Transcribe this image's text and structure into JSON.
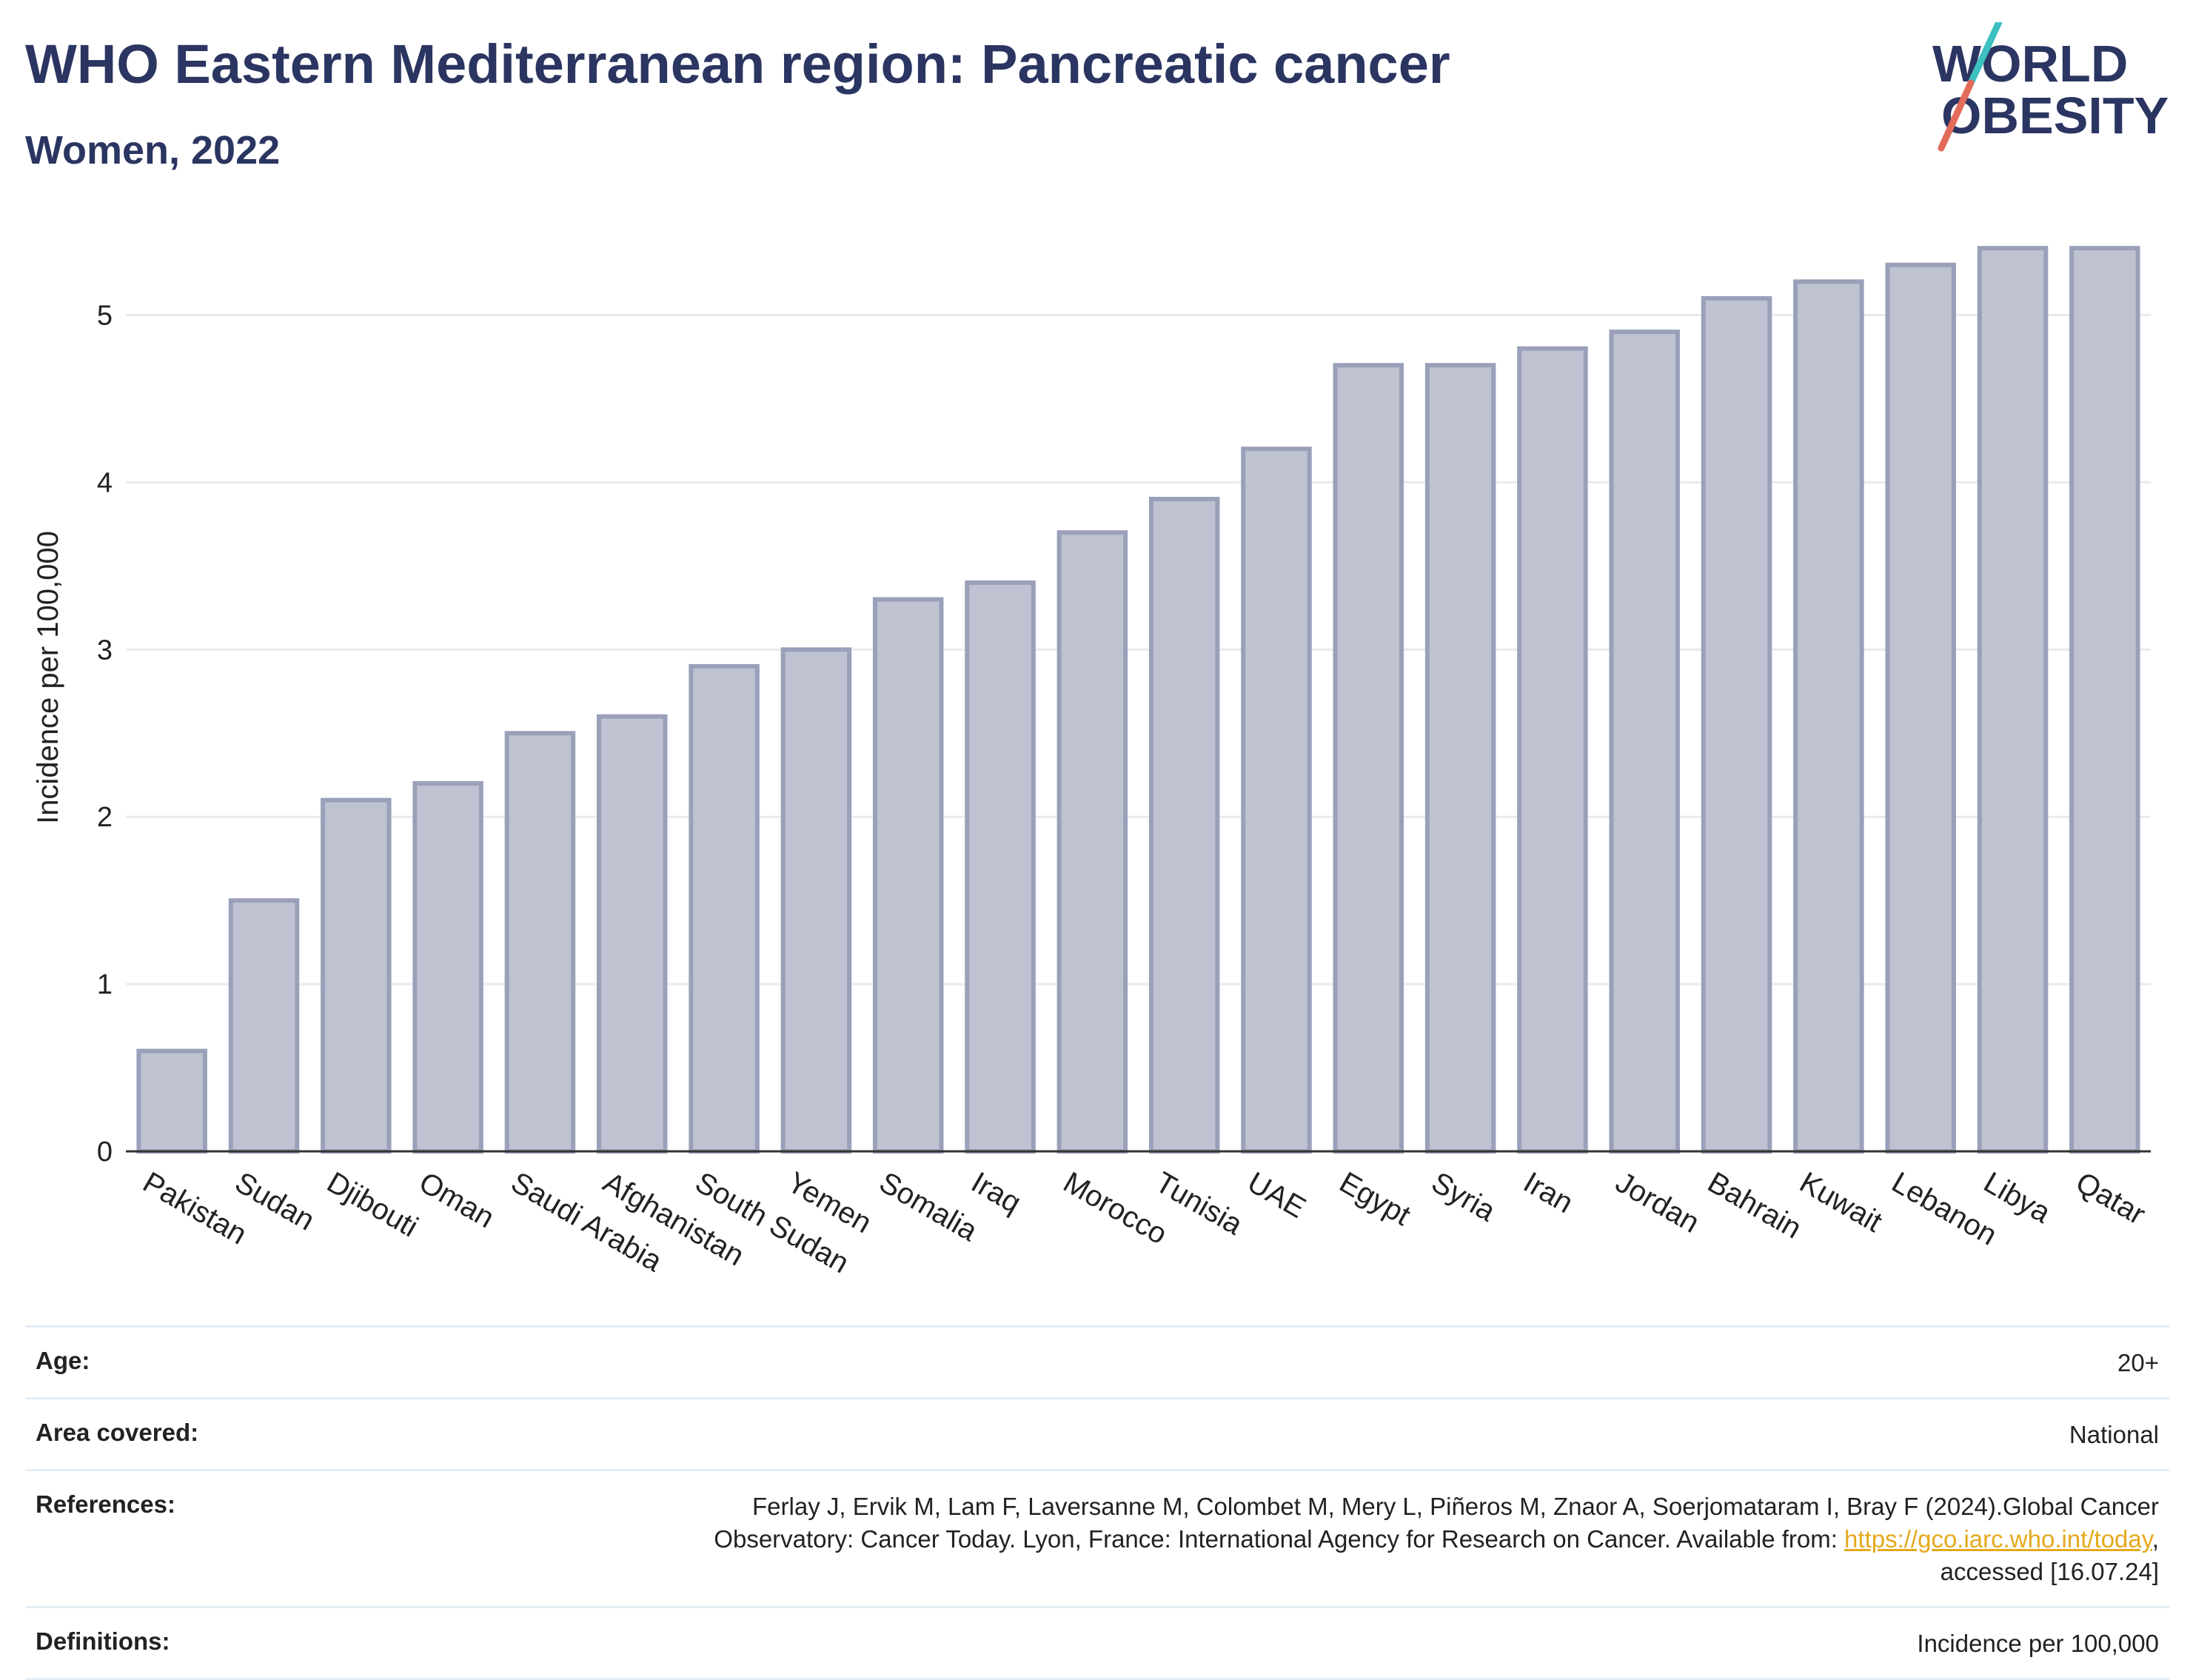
{
  "header": {
    "title": "WHO Eastern Mediterranean region: Pancreatic cancer",
    "subtitle": "Women, 2022"
  },
  "logo": {
    "line1": "WORLD",
    "line2": "OBESITY",
    "colors": {
      "text": "#2b3561",
      "slash_teal": "#3cc0c0",
      "slash_coral": "#e36b5a"
    }
  },
  "chart_data": {
    "type": "bar",
    "ylabel": "Incidence per 100,000",
    "xlabel": "",
    "ylim": [
      0,
      5.6
    ],
    "yticks": [
      0,
      1,
      2,
      3,
      4,
      5
    ],
    "grid": true,
    "bar_fill": "#bfc2d0",
    "bar_stroke": "#9aa0b9",
    "categories": [
      "Pakistan",
      "Sudan",
      "Djibouti",
      "Oman",
      "Saudi Arabia",
      "Afghanistan",
      "South Sudan",
      "Yemen",
      "Somalia",
      "Iraq",
      "Morocco",
      "Tunisia",
      "UAE",
      "Egypt",
      "Syria",
      "Iran",
      "Jordan",
      "Bahrain",
      "Kuwait",
      "Lebanon",
      "Libya",
      "Qatar"
    ],
    "values": [
      0.6,
      1.5,
      2.1,
      2.2,
      2.5,
      2.6,
      2.9,
      3.0,
      3.3,
      3.4,
      3.7,
      3.9,
      4.2,
      4.7,
      4.7,
      4.8,
      4.9,
      5.1,
      5.2,
      5.3,
      5.4,
      5.4
    ]
  },
  "info": {
    "age_label": "Age:",
    "age_value": "20+",
    "area_label": "Area covered:",
    "area_value": "National",
    "references_label": "References:",
    "references_line1": "Ferlay J, Ervik M, Lam F, Laversanne M, Colombet M, Mery L, Piñeros M, Znaor A, Soerjomataram I, Bray F (2024).Global Cancer",
    "references_line2_pre": "Observatory: Cancer Today. Lyon, France: International Agency for Research on Cancer. Available from: ",
    "references_link": "https://gco.iarc.who.int/today",
    "references_line2_post": ",",
    "references_line3": "accessed [16.07.24]",
    "definitions_label": "Definitions:",
    "definitions_value": "Incidence per 100,000"
  }
}
